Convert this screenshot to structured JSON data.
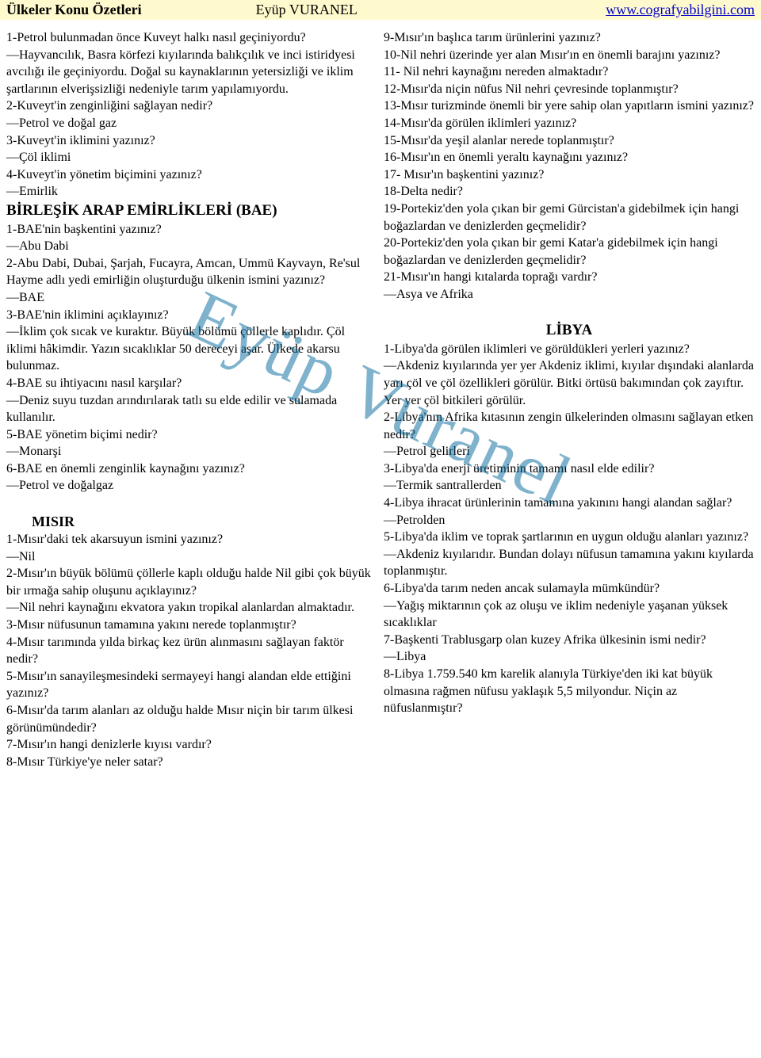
{
  "header": {
    "left": "Ülkeler Konu Özetleri",
    "mid": "Eyüp VURANEL",
    "right": "www.cografyabilgini.com"
  },
  "watermark": "Eyüp Vuranel",
  "left_col": [
    {
      "t": "p",
      "v": "1-Petrol bulunmadan önce Kuveyt halkı nasıl geçiniyordu?"
    },
    {
      "t": "p",
      "v": "—Hayvancılık, Basra körfezi kıyılarında balıkçılık ve inci istiridyesi avcılığı ile geçiniyordu. Doğal su kaynaklarının yetersizliği ve iklim şartlarının elverişsizliği nedeniyle tarım yapılamıyordu."
    },
    {
      "t": "p",
      "v": "2-Kuveyt'in zenginliğini sağlayan nedir?"
    },
    {
      "t": "p",
      "v": "—Petrol ve doğal gaz"
    },
    {
      "t": "p",
      "v": "3-Kuveyt'in iklimini yazınız?"
    },
    {
      "t": "p",
      "v": "—Çöl iklimi"
    },
    {
      "t": "p",
      "v": "4-Kuveyt'in yönetim biçimini yazınız?"
    },
    {
      "t": "p",
      "v": "—Emirlik"
    },
    {
      "t": "h",
      "v": "BİRLEŞİK ARAP EMİRLİKLERİ (BAE)"
    },
    {
      "t": "p",
      "v": "1-BAE'nin başkentini yazınız?"
    },
    {
      "t": "p",
      "v": "—Abu Dabi"
    },
    {
      "t": "p",
      "v": "2-Abu Dabi, Dubai, Şarjah, Fucayra, Amcan, Ummü Kayvayn, Re'sul Hayme adlı yedi emirliğin oluşturduğu ülkenin ismini yazınız?"
    },
    {
      "t": "p",
      "v": "—BAE"
    },
    {
      "t": "p",
      "v": "3-BAE'nin iklimini açıklayınız?"
    },
    {
      "t": "p",
      "v": "—İklim çok sıcak ve kuraktır. Büyük bölümü çöllerle kaplıdır. Çöl iklimi hâkimdir. Yazın sıcaklıklar 50 dereceyi aşar. Ülkede akarsu bulunmaz."
    },
    {
      "t": "p",
      "v": "4-BAE su ihtiyacını nasıl karşılar?"
    },
    {
      "t": "p",
      "v": "—Deniz suyu tuzdan arındırılarak tatlı su elde edilir ve sulamada kullanılır."
    },
    {
      "t": "p",
      "v": "5-BAE yönetim biçimi nedir?"
    },
    {
      "t": "p",
      "v": "—Monarşi"
    },
    {
      "t": "p",
      "v": "6-BAE en önemli zenginlik kaynağını yazınız?"
    },
    {
      "t": "p",
      "v": "—Petrol ve doğalgaz"
    },
    {
      "t": "sp",
      "v": ""
    },
    {
      "t": "hi",
      "v": "MISIR"
    },
    {
      "t": "p",
      "v": "1-Mısır'daki tek akarsuyun ismini yazınız?"
    },
    {
      "t": "p",
      "v": "—Nil"
    },
    {
      "t": "p",
      "v": "2-Mısır'ın büyük bölümü çöllerle kaplı olduğu halde Nil gibi çok büyük bir ırmağa sahip oluşunu açıklayınız?"
    },
    {
      "t": "p",
      "v": "—Nil nehri kaynağını ekvatora yakın tropikal alanlardan almaktadır."
    },
    {
      "t": "p",
      "v": "3-Mısır nüfusunun tamamına yakını nerede toplanmıştır?"
    },
    {
      "t": "p",
      "v": "4-Mısır tarımında yılda birkaç kez ürün alınmasını sağlayan faktör nedir?"
    },
    {
      "t": "p",
      "v": "5-Mısır'ın sanayileşmesindeki sermayeyi hangi alandan elde ettiğini yazınız?"
    },
    {
      "t": "p",
      "v": "6-Mısır'da tarım alanları az olduğu halde Mısır niçin bir tarım ülkesi görünümündedir?"
    },
    {
      "t": "p",
      "v": "7-Mısır'ın hangi denizlerle kıyısı vardır?"
    },
    {
      "t": "p",
      "v": "8-Mısır Türkiye'ye neler satar?"
    }
  ],
  "right_col": [
    {
      "t": "p",
      "v": "9-Mısır'ın başlıca tarım ürünlerini yazınız?"
    },
    {
      "t": "p",
      "v": "10-Nil nehri üzerinde yer alan Mısır'ın en önemli barajını yazınız?"
    },
    {
      "t": "p",
      "v": "11- Nil nehri kaynağını nereden almaktadır?"
    },
    {
      "t": "p",
      "v": "12-Mısır'da niçin nüfus Nil nehri çevresinde toplanmıştır?"
    },
    {
      "t": "p",
      "v": "13-Mısır turizminde önemli bir yere sahip olan yapıtların ismini yazınız?"
    },
    {
      "t": "p",
      "v": "14-Mısır'da görülen iklimleri yazınız?"
    },
    {
      "t": "p",
      "v": "15-Mısır'da yeşil alanlar nerede toplanmıştır?"
    },
    {
      "t": "p",
      "v": "16-Mısır'ın en önemli yeraltı kaynağını yazınız?"
    },
    {
      "t": "p",
      "v": "17- Mısır'ın başkentini yazınız?"
    },
    {
      "t": "p",
      "v": "18-Delta nedir?"
    },
    {
      "t": "p",
      "v": "19-Portekiz'den yola çıkan bir gemi Gürcistan'a gidebilmek için hangi boğazlardan ve denizlerden geçmelidir?"
    },
    {
      "t": "p",
      "v": "20-Portekiz'den yola çıkan bir gemi Katar'a gidebilmek için hangi boğazlardan ve denizlerden geçmelidir?"
    },
    {
      "t": "p",
      "v": "21-Mısır'ın hangi kıtalarda toprağı vardır?"
    },
    {
      "t": "p",
      "v": "—Asya ve Afrika"
    },
    {
      "t": "sp",
      "v": ""
    },
    {
      "t": "hc",
      "v": "LİBYA"
    },
    {
      "t": "p",
      "v": "1-Libya'da görülen iklimleri ve görüldükleri yerleri yazınız?"
    },
    {
      "t": "p",
      "v": "—Akdeniz kıyılarında yer yer Akdeniz iklimi, kıyılar dışındaki alanlarda yarı çöl ve çöl özellikleri görülür. Bitki örtüsü bakımından çok zayıftır. Yer yer çöl bitkileri görülür."
    },
    {
      "t": "p",
      "v": "2-Libya'nın Afrika kıtasının zengin ülkelerinden olmasını sağlayan etken nedir?"
    },
    {
      "t": "p",
      "v": "—Petrol gelirleri"
    },
    {
      "t": "p",
      "v": "3-Libya'da enerji üretiminin tamamı nasıl elde edilir?"
    },
    {
      "t": "p",
      "v": "—Termik santrallerden"
    },
    {
      "t": "p",
      "v": "4-Libya ihracat ürünlerinin tamamına yakınını hangi alandan sağlar?"
    },
    {
      "t": "p",
      "v": "—Petrolden"
    },
    {
      "t": "p",
      "v": "5-Libya'da iklim ve toprak şartlarının en uygun olduğu alanları yazınız?"
    },
    {
      "t": "p",
      "v": "—Akdeniz kıyılarıdır. Bundan dolayı nüfusun tamamına yakını kıyılarda toplanmıştır."
    },
    {
      "t": "p",
      "v": "6-Libya'da tarım neden ancak sulamayla mümkündür?"
    },
    {
      "t": "p",
      "v": "—Yağış miktarının çok az oluşu ve iklim nedeniyle yaşanan yüksek sıcaklıklar"
    },
    {
      "t": "p",
      "v": "7-Başkenti Trablusgarp olan kuzey Afrika ülkesinin ismi nedir?"
    },
    {
      "t": "p",
      "v": "—Libya"
    },
    {
      "t": "p",
      "v": "8-Libya 1.759.540 km karelik alanıyla Türkiye'den iki kat büyük olmasına rağmen nüfusu yaklaşık 5,5 milyondur. Niçin az nüfuslanmıştır?"
    }
  ],
  "colors": {
    "header_bg": "#fffacd",
    "link": "#0000cc",
    "watermark": "rgba(0,102,153,0.5)",
    "text": "#000000",
    "bg": "#ffffff"
  }
}
